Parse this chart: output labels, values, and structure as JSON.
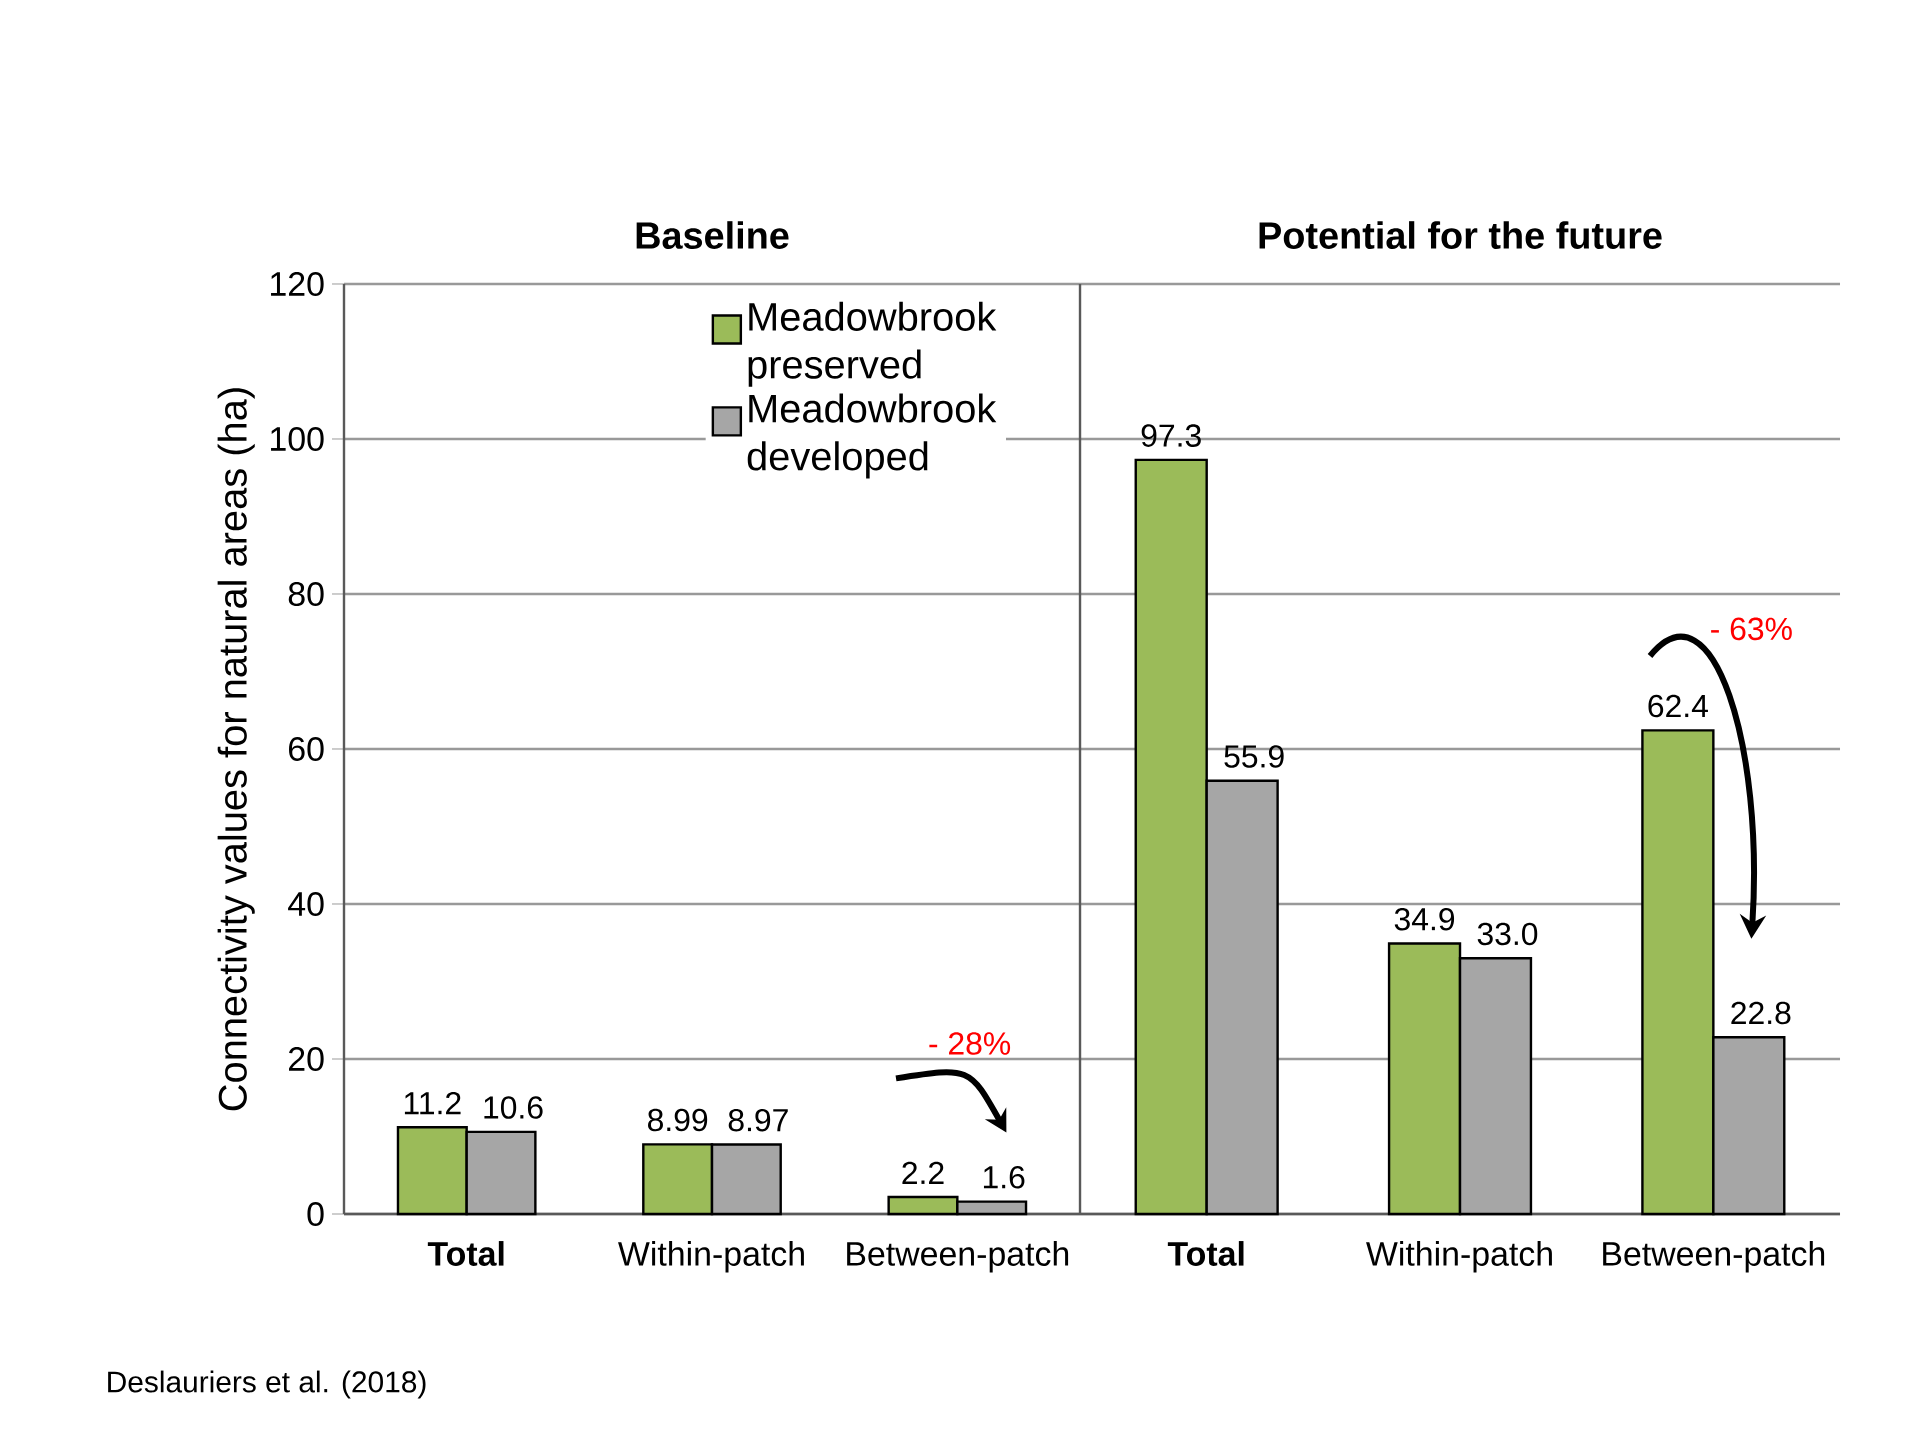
{
  "chart_data": [
    {
      "type": "bar",
      "title": "Baseline",
      "ylabel": "Connectivity values for natural areas (ha)",
      "categories": [
        "**Total**",
        "Within-patch",
        "Between-patch"
      ],
      "series": [
        {
          "name": "Meadowbrook preserved",
          "color": "#9bbb59",
          "values": [
            11.2,
            8.99,
            2.2
          ]
        },
        {
          "name": "Meadowbrook developed",
          "color": "#a6a6a6",
          "values": [
            10.6,
            8.97,
            1.6
          ]
        }
      ],
      "ylim": [
        0,
        120
      ],
      "yticks": [
        0,
        20,
        40,
        60,
        80,
        100,
        120
      ],
      "grid": "y",
      "legend": "top right",
      "data_labels": true,
      "annotations": [
        "- 28%",
        "Deslauriers et al. (2018)"
      ]
    },
    {
      "type": "bar",
      "title": "Potential for the future",
      "categories": [
        "**Total**",
        "Within-patch",
        "Between-patch"
      ],
      "series": [
        {
          "color": "#9bbb59",
          "values": [
            97.3,
            34.9,
            62.4
          ]
        },
        {
          "color": "#a6a6a6",
          "values": [
            55.9,
            33.0,
            22.8
          ],
          "value_labels": [
            "55.9",
            "33.0",
            "22.8"
          ]
        }
      ],
      "ylim": [
        0,
        120
      ],
      "yticks": [
        0,
        20,
        40,
        60,
        80,
        100,
        120
      ],
      "grid": "y",
      "tick_labels": "x",
      "data_labels": true,
      "annotations": [
        "- 63%"
      ]
    }
  ]
}
